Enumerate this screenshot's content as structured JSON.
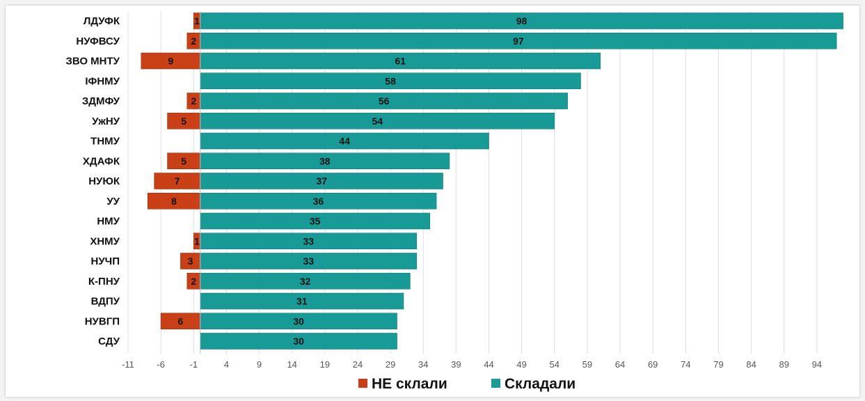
{
  "chart_data": {
    "type": "bar",
    "orientation": "horizontal",
    "categories": [
      "ЛДУФК",
      "НУФВСУ",
      "ЗВО МНТУ",
      "ІФНМУ",
      "ЗДМФУ",
      "УжНУ",
      "ТНМУ",
      "ХДАФК",
      "НУЮК",
      "УУ",
      "НМУ",
      "ХНМУ",
      "НУЧП",
      "К-ПНУ",
      "ВДПУ",
      "НУВГП",
      "СДУ"
    ],
    "series": [
      {
        "name": "НЕ склали",
        "color": "#c94016",
        "direction": "negative",
        "values": [
          1,
          2,
          9,
          null,
          2,
          5,
          null,
          5,
          7,
          8,
          null,
          1,
          3,
          2,
          null,
          6,
          null
        ]
      },
      {
        "name": "Складали",
        "color": "#189b96",
        "direction": "positive",
        "values": [
          98,
          97,
          61,
          58,
          56,
          54,
          44,
          38,
          37,
          36,
          35,
          33,
          33,
          32,
          31,
          30,
          30
        ]
      }
    ],
    "xticks": [
      "-11",
      "-6",
      "-1",
      "4",
      "9",
      "14",
      "19",
      "24",
      "29",
      "34",
      "39",
      "44",
      "49",
      "54",
      "59",
      "64",
      "69",
      "74",
      "79",
      "84",
      "89",
      "94"
    ],
    "xlim": [
      -11,
      99
    ],
    "grid": "vertical",
    "legend_position": "bottom"
  }
}
